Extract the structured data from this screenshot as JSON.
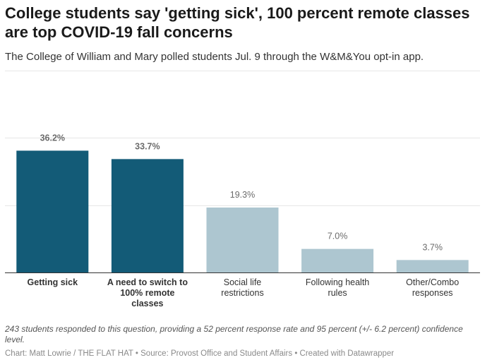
{
  "header": {
    "title": "College students say 'getting sick', 100 percent remote classes are top COVID-19 fall concerns",
    "subtitle": "The College of William and Mary polled students Jul. 9 through the W&M&You opt-in app."
  },
  "footer": {
    "notes": "243 students responded to this question, providing a 52 percent response rate and 95 percent (+/- 6.2 percent) confidence level.",
    "byline": "Chart: Matt Lowrie / THE FLAT HAT • Source: Provost Office and Student Affairs • Created with Datawrapper"
  },
  "chart_data": {
    "type": "bar",
    "categories": [
      "Getting sick",
      "A need to switch to 100% remote classes",
      "Social life restrictions",
      "Following health rules",
      "Other/Combo responses"
    ],
    "category_lines": [
      [
        "Getting sick"
      ],
      [
        "A need to switch to",
        "100% remote",
        "classes"
      ],
      [
        "Social life",
        "restrictions"
      ],
      [
        "Following health",
        "rules"
      ],
      [
        "Other/Combo",
        "responses"
      ]
    ],
    "values": [
      36.2,
      33.7,
      19.3,
      7.0,
      3.7
    ],
    "value_labels": [
      "36.2%",
      "33.7%",
      "19.3%",
      "7.0%",
      "3.7%"
    ],
    "highlighted": [
      true,
      true,
      false,
      false,
      false
    ],
    "title": "",
    "xlabel": "",
    "ylabel": "",
    "ylim": [
      0,
      60
    ],
    "grid_values": [
      0,
      20,
      40,
      60
    ],
    "grid": true,
    "colors": {
      "highlight": "#135b77",
      "muted": "#adc6d0",
      "grid": "#e6e6e6",
      "axis": "#333333"
    }
  }
}
